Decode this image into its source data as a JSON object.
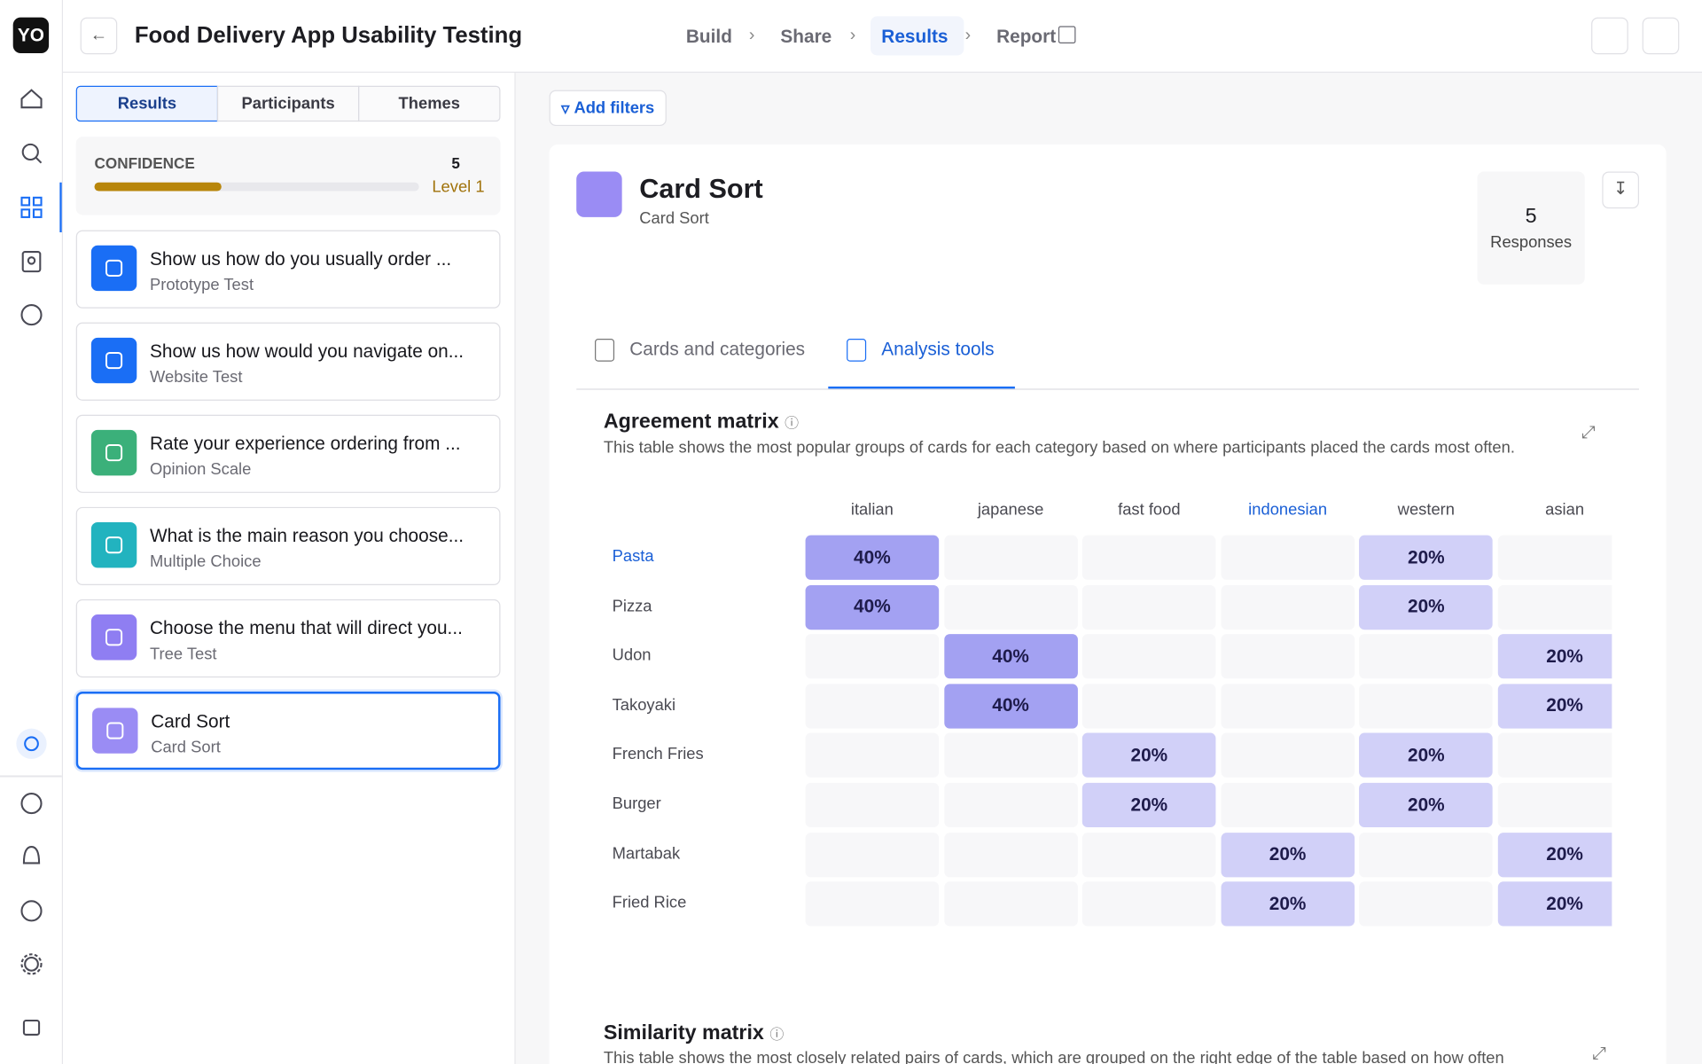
{
  "header": {
    "logo": "YO",
    "title": "Food Delivery App Usability Testing",
    "steps": [
      "Build",
      "Share",
      "Results",
      "Report"
    ],
    "active_step": 2
  },
  "left_panel": {
    "tabs": [
      "Results",
      "Participants",
      "Themes"
    ],
    "active_tab": 0,
    "confidence": {
      "label": "CONFIDENCE",
      "count": 5,
      "level": "Level 1",
      "progress": 39
    },
    "tasks": [
      {
        "title": "Show us how do you usually order ...",
        "type": "Prototype Test",
        "color": "#1a6ef5"
      },
      {
        "title": "Show us how would you navigate on...",
        "type": "Website Test",
        "color": "#1a6ef5"
      },
      {
        "title": "Rate your experience ordering from ...",
        "type": "Opinion Scale",
        "color": "#3bb07a"
      },
      {
        "title": "What is the main reason you choose...",
        "type": "Multiple Choice",
        "color": "#22b3bf"
      },
      {
        "title": "Choose the menu that will direct you...",
        "type": "Tree Test",
        "color": "#8f7ef2"
      },
      {
        "title": "Card Sort",
        "type": "Card Sort",
        "color": "#9a8cf4"
      }
    ],
    "selected_task": 5
  },
  "main": {
    "filter_button": "Add filters",
    "title": "Card Sort",
    "subtitle": "Card Sort",
    "responses": {
      "count": 5,
      "label": "Responses"
    },
    "tabs": [
      "Cards and categories",
      "Analysis tools"
    ],
    "active_tab": 1,
    "agreement_matrix": {
      "title": "Agreement matrix",
      "description": "This table shows the most popular groups of cards for each category based on where participants placed the cards most often.",
      "columns": [
        "italian",
        "japanese",
        "fast food",
        "indonesian",
        "western",
        "asian"
      ],
      "rows": [
        {
          "label": "Pasta",
          "cells": [
            "40%",
            null,
            null,
            null,
            "20%",
            null
          ]
        },
        {
          "label": "Pizza",
          "cells": [
            "40%",
            null,
            null,
            null,
            "20%",
            null
          ]
        },
        {
          "label": "Udon",
          "cells": [
            null,
            "40%",
            null,
            null,
            null,
            "20%"
          ]
        },
        {
          "label": "Takoyaki",
          "cells": [
            null,
            "40%",
            null,
            null,
            null,
            "20%"
          ]
        },
        {
          "label": "French Fries",
          "cells": [
            null,
            null,
            "20%",
            null,
            "20%",
            null
          ]
        },
        {
          "label": "Burger",
          "cells": [
            null,
            null,
            "20%",
            null,
            "20%",
            null
          ]
        },
        {
          "label": "Martabak",
          "cells": [
            null,
            null,
            null,
            "20%",
            null,
            "20%"
          ]
        },
        {
          "label": "Fried Rice",
          "cells": [
            null,
            null,
            null,
            "20%",
            null,
            "20%"
          ]
        }
      ],
      "highlight_row": 0,
      "highlight_column": 3
    },
    "similarity_matrix": {
      "title": "Similarity matrix",
      "description": "This table shows the most closely related pairs of cards, which are grouped on the right edge of the table based on how often"
    }
  }
}
